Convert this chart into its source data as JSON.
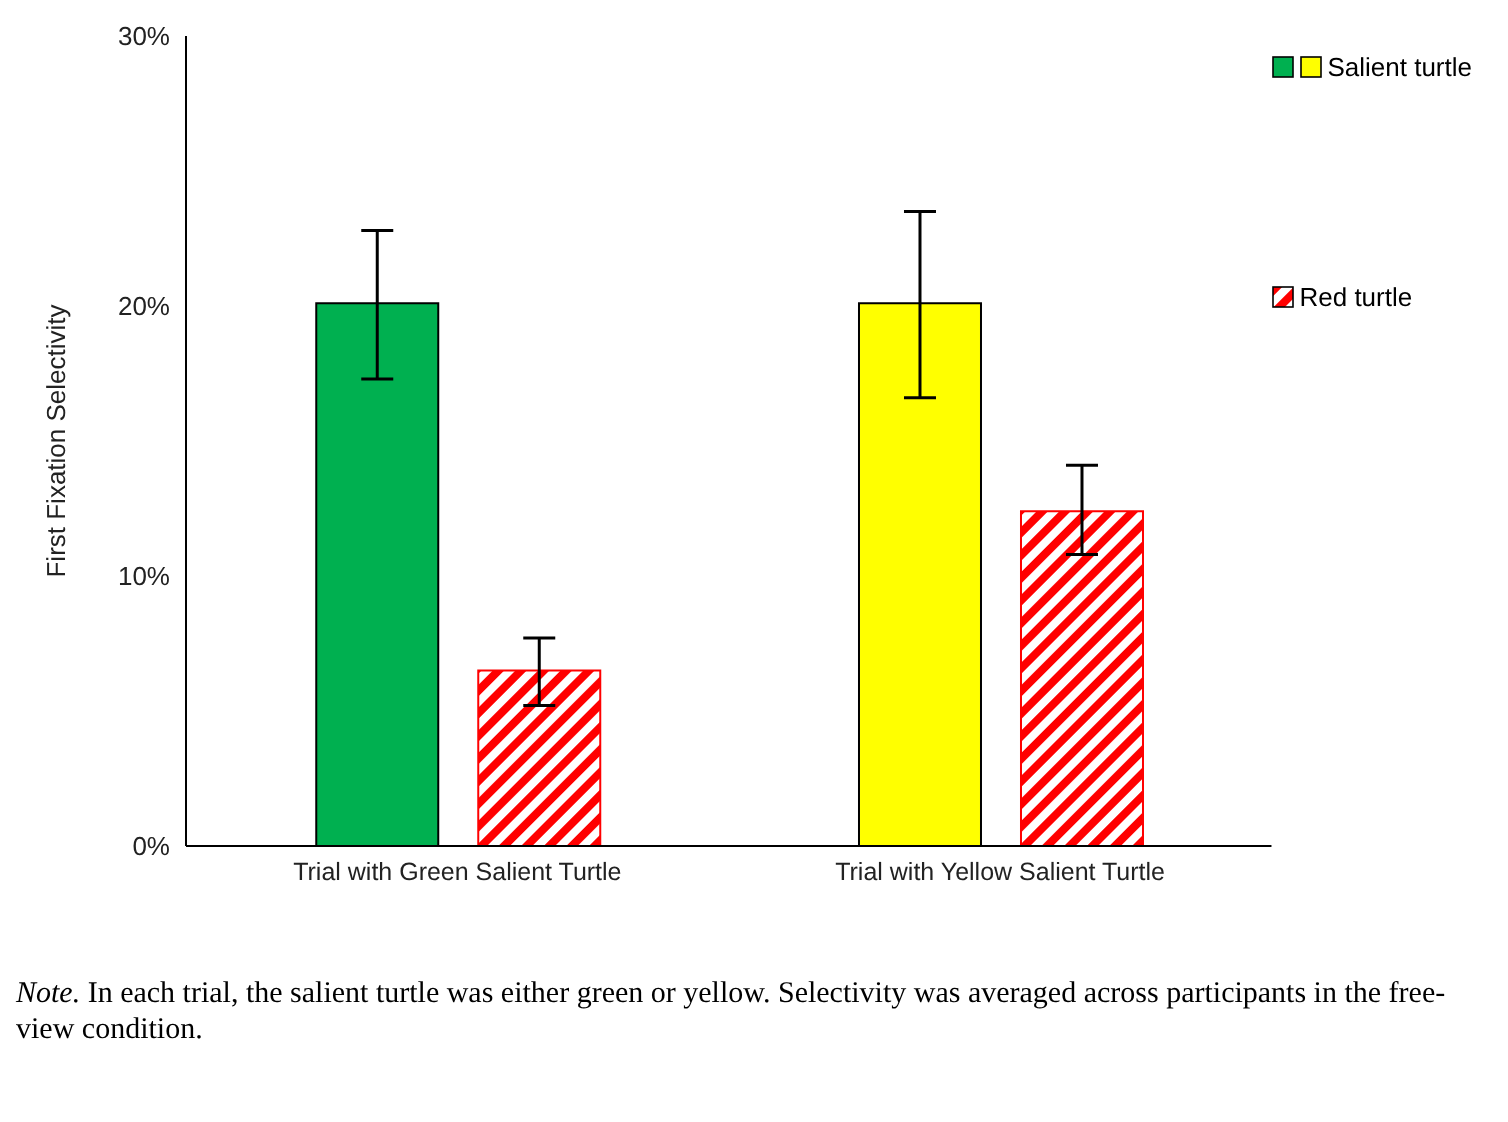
{
  "chart_data": {
    "type": "bar",
    "ylabel": "First Fixation Selectivity",
    "categories": [
      "Trial with Green Salient Turtle",
      "Trial with Yellow Salient Turtle"
    ],
    "series": [
      {
        "name": "Salient turtle",
        "colors": [
          "#00b050",
          "#ffff00"
        ],
        "values": [
          20.1,
          20.1
        ],
        "errors": [
          [
            17.3,
            22.8
          ],
          [
            16.6,
            23.5
          ]
        ]
      },
      {
        "name": "Red turtle",
        "color": "#ff0000",
        "values": [
          6.5,
          12.4
        ],
        "errors": [
          [
            5.2,
            7.7
          ],
          [
            10.8,
            14.1
          ]
        ]
      }
    ],
    "ylim": [
      0,
      30
    ],
    "yticks": [
      {
        "value": 0,
        "label": "0%"
      },
      {
        "value": 10,
        "label": "10%"
      },
      {
        "value": 20,
        "label": "20%"
      },
      {
        "value": 30,
        "label": "30%"
      }
    ],
    "grid": false,
    "legend": "top right",
    "annotations": [
      "Note. In each trial, the salient turtle was either green or yellow. Selectivity was averaged across participants in the free-view condition."
    ]
  }
}
